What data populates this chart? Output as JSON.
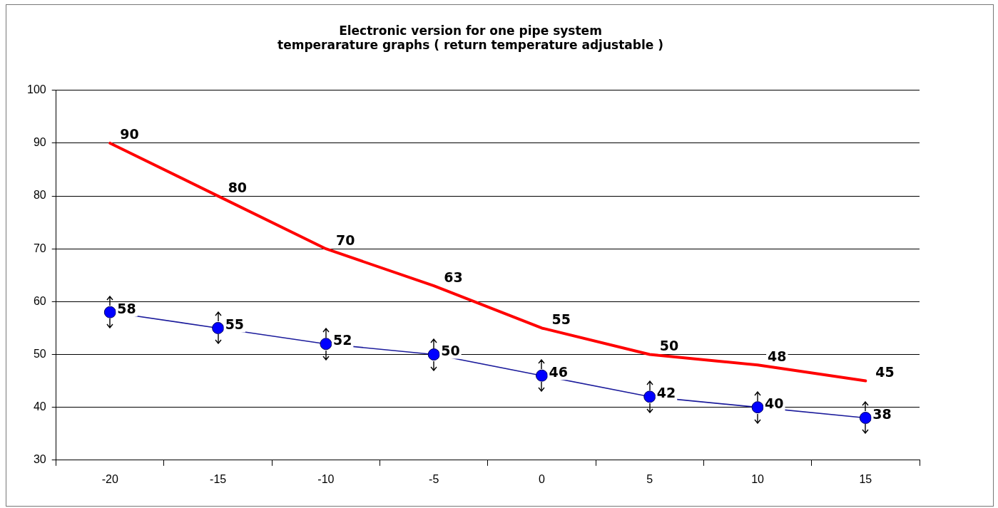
{
  "chart_data": {
    "type": "line",
    "title": "Electronic version for one pipe system\ntemperarature graphs ( return temperature adjustable )",
    "categories": [
      "-20",
      "-15",
      "-10",
      "-5",
      "0",
      "5",
      "10",
      "15"
    ],
    "series": [
      {
        "color": "#ff0000",
        "marker": "none",
        "values": [
          90,
          80,
          70,
          63,
          55,
          50,
          48,
          45
        ]
      },
      {
        "color": "#0000ff",
        "marker": "circle",
        "values": [
          58,
          55,
          52,
          50,
          46,
          42,
          40,
          38
        ]
      }
    ],
    "ylim": [
      30,
      100
    ],
    "yticks": [
      30,
      40,
      50,
      60,
      70,
      80,
      90,
      100
    ],
    "grid": "y",
    "legend": false,
    "data_labels": true
  }
}
